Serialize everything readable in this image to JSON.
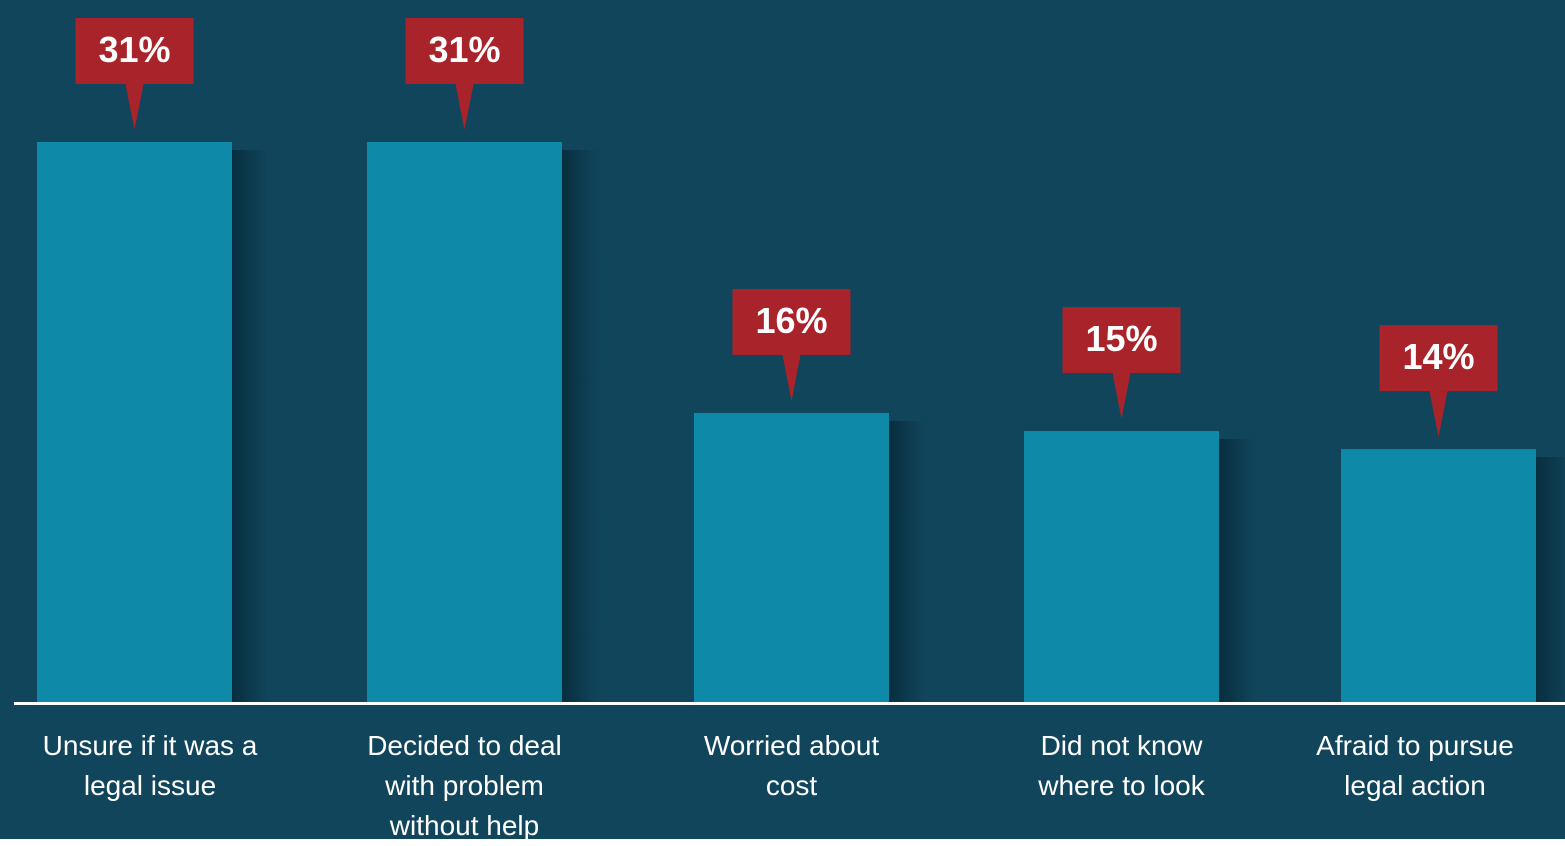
{
  "colors": {
    "background": "#11455b",
    "bar": "#0f89a8",
    "callout": "#a9232b",
    "axis": "#ffffff",
    "text": "#ffffff"
  },
  "chart_data": {
    "type": "bar",
    "categories": [
      "Unsure if it was a\nlegal issue",
      "Decided to deal\nwith problem\nwithout help",
      "Worried about\ncost",
      "Did not know\nwhere to look",
      "Afraid to pursue\nlegal action"
    ],
    "values": [
      31,
      31,
      16,
      15,
      14
    ],
    "value_labels": [
      "31%",
      "31%",
      "16%",
      "15%",
      "14%"
    ],
    "unit": "%",
    "ylim": [
      0,
      31
    ],
    "grid": false,
    "legend": "none"
  }
}
